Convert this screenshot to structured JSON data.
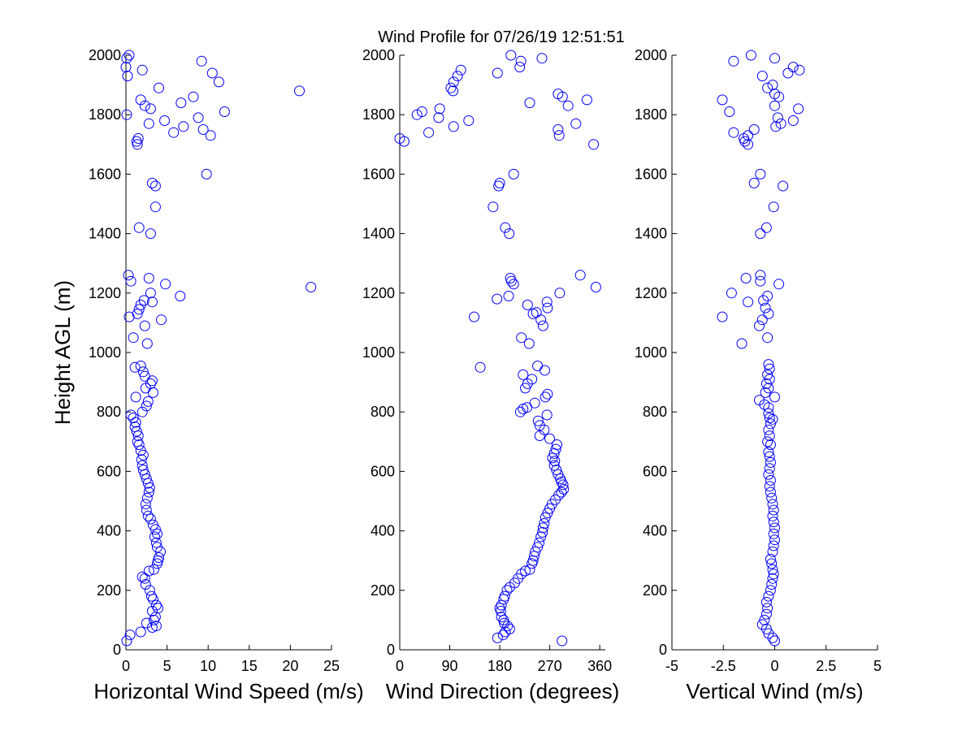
{
  "figure": {
    "title": "Wind Profile for  07/26/19 12:51:51",
    "marker_color": "#0000ff",
    "axis_color": "#000000",
    "background": "#ffffff"
  },
  "chart_data": [
    {
      "type": "scatter",
      "title": "",
      "xlabel": "Horizontal Wind Speed (m/s)",
      "ylabel": "Height AGL (m)",
      "xlim": [
        0,
        25
      ],
      "ylim": [
        0,
        2000
      ],
      "xticks": [
        0,
        5,
        10,
        15,
        20,
        25
      ],
      "yticks": [
        0,
        200,
        400,
        600,
        800,
        1000,
        1200,
        1400,
        1600,
        1800,
        2000
      ],
      "grid": false,
      "legend": "none",
      "points": [
        [
          0.1,
          30
        ],
        [
          0.5,
          50
        ],
        [
          1.8,
          60
        ],
        [
          3.2,
          75
        ],
        [
          3.7,
          80
        ],
        [
          2.5,
          90
        ],
        [
          3.4,
          100
        ],
        [
          3.6,
          110
        ],
        [
          3.2,
          130
        ],
        [
          3.9,
          140
        ],
        [
          3.7,
          150
        ],
        [
          3.3,
          170
        ],
        [
          3.1,
          180
        ],
        [
          2.9,
          200
        ],
        [
          2.4,
          220
        ],
        [
          2.3,
          240
        ],
        [
          2.0,
          245
        ],
        [
          2.8,
          265
        ],
        [
          3.4,
          270
        ],
        [
          3.8,
          290
        ],
        [
          3.9,
          300
        ],
        [
          4.0,
          310
        ],
        [
          4.2,
          330
        ],
        [
          3.8,
          345
        ],
        [
          3.7,
          360
        ],
        [
          3.5,
          380
        ],
        [
          3.8,
          390
        ],
        [
          3.6,
          405
        ],
        [
          3.3,
          420
        ],
        [
          3.0,
          440
        ],
        [
          2.7,
          450
        ],
        [
          2.5,
          470
        ],
        [
          2.4,
          490
        ],
        [
          2.6,
          510
        ],
        [
          2.8,
          530
        ],
        [
          2.9,
          545
        ],
        [
          2.7,
          560
        ],
        [
          2.5,
          575
        ],
        [
          2.3,
          590
        ],
        [
          2.1,
          605
        ],
        [
          2.0,
          620
        ],
        [
          1.9,
          640
        ],
        [
          2.1,
          655
        ],
        [
          1.8,
          670
        ],
        [
          1.6,
          690
        ],
        [
          1.4,
          700
        ],
        [
          1.5,
          720
        ],
        [
          1.3,
          735
        ],
        [
          1.1,
          750
        ],
        [
          1.2,
          765
        ],
        [
          0.9,
          780
        ],
        [
          0.6,
          790
        ],
        [
          2.0,
          800
        ],
        [
          2.5,
          820
        ],
        [
          2.7,
          835
        ],
        [
          1.2,
          850
        ],
        [
          3.3,
          865
        ],
        [
          2.4,
          880
        ],
        [
          3.0,
          895
        ],
        [
          3.2,
          905
        ],
        [
          2.3,
          920
        ],
        [
          2.1,
          935
        ],
        [
          1.8,
          955
        ],
        [
          1.1,
          950
        ],
        [
          2.6,
          1030
        ],
        [
          0.9,
          1050
        ],
        [
          2.3,
          1090
        ],
        [
          4.3,
          1110
        ],
        [
          0.4,
          1120
        ],
        [
          1.4,
          1130
        ],
        [
          1.6,
          1145
        ],
        [
          1.8,
          1160
        ],
        [
          3.2,
          1170
        ],
        [
          2.2,
          1175
        ],
        [
          6.6,
          1190
        ],
        [
          3.0,
          1200
        ],
        [
          4.8,
          1230
        ],
        [
          22.5,
          1220
        ],
        [
          0.6,
          1240
        ],
        [
          2.8,
          1250
        ],
        [
          0.3,
          1260
        ],
        [
          1.6,
          1420
        ],
        [
          3.0,
          1400
        ],
        [
          3.6,
          1490
        ],
        [
          3.6,
          1560
        ],
        [
          3.2,
          1570
        ],
        [
          9.8,
          1600
        ],
        [
          1.4,
          1700
        ],
        [
          1.3,
          1710
        ],
        [
          1.5,
          1720
        ],
        [
          10.3,
          1730
        ],
        [
          5.8,
          1740
        ],
        [
          9.4,
          1750
        ],
        [
          7.0,
          1760
        ],
        [
          2.8,
          1770
        ],
        [
          4.7,
          1780
        ],
        [
          8.8,
          1790
        ],
        [
          0.1,
          1800
        ],
        [
          12.0,
          1810
        ],
        [
          3.0,
          1820
        ],
        [
          2.3,
          1830
        ],
        [
          1.8,
          1850
        ],
        [
          6.7,
          1840
        ],
        [
          8.2,
          1860
        ],
        [
          21.1,
          1880
        ],
        [
          4.0,
          1890
        ],
        [
          11.3,
          1910
        ],
        [
          0.2,
          1930
        ],
        [
          10.5,
          1940
        ],
        [
          2.0,
          1950
        ],
        [
          0.0,
          1960
        ],
        [
          9.2,
          1980
        ],
        [
          0.1,
          1990
        ],
        [
          0.4,
          2000
        ]
      ]
    },
    {
      "type": "scatter",
      "title": "",
      "xlabel": "Wind Direction (degrees)",
      "ylabel": "",
      "xlim": [
        0,
        370
      ],
      "ylim": [
        0,
        2000
      ],
      "xticks": [
        0,
        90,
        180,
        270,
        360
      ],
      "yticks": [
        0,
        200,
        400,
        600,
        800,
        1000,
        1200,
        1400,
        1600,
        1800,
        2000
      ],
      "grid": false,
      "legend": "none",
      "points": [
        [
          292,
          30
        ],
        [
          176,
          40
        ],
        [
          186,
          50
        ],
        [
          190,
          60
        ],
        [
          198,
          70
        ],
        [
          194,
          80
        ],
        [
          188,
          90
        ],
        [
          187,
          100
        ],
        [
          183,
          110
        ],
        [
          182,
          130
        ],
        [
          180,
          140
        ],
        [
          183,
          150
        ],
        [
          187,
          170
        ],
        [
          189,
          180
        ],
        [
          193,
          200
        ],
        [
          198,
          210
        ],
        [
          207,
          225
        ],
        [
          213,
          240
        ],
        [
          219,
          255
        ],
        [
          226,
          265
        ],
        [
          234,
          270
        ],
        [
          238,
          290
        ],
        [
          240,
          300
        ],
        [
          242,
          315
        ],
        [
          244,
          330
        ],
        [
          248,
          345
        ],
        [
          251,
          360
        ],
        [
          254,
          380
        ],
        [
          257,
          395
        ],
        [
          258,
          410
        ],
        [
          260,
          425
        ],
        [
          262,
          445
        ],
        [
          266,
          460
        ],
        [
          270,
          475
        ],
        [
          274,
          490
        ],
        [
          280,
          505
        ],
        [
          286,
          520
        ],
        [
          291,
          530
        ],
        [
          295,
          540
        ],
        [
          294,
          555
        ],
        [
          291,
          565
        ],
        [
          289,
          575
        ],
        [
          285,
          590
        ],
        [
          282,
          605
        ],
        [
          278,
          620
        ],
        [
          279,
          635
        ],
        [
          275,
          645
        ],
        [
          278,
          660
        ],
        [
          281,
          675
        ],
        [
          283,
          690
        ],
        [
          270,
          710
        ],
        [
          252,
          720
        ],
        [
          260,
          740
        ],
        [
          252,
          755
        ],
        [
          249,
          770
        ],
        [
          265,
          790
        ],
        [
          217,
          800
        ],
        [
          222,
          810
        ],
        [
          229,
          815
        ],
        [
          243,
          830
        ],
        [
          262,
          850
        ],
        [
          266,
          860
        ],
        [
          226,
          880
        ],
        [
          230,
          895
        ],
        [
          238,
          910
        ],
        [
          222,
          925
        ],
        [
          261,
          940
        ],
        [
          248,
          955
        ],
        [
          145,
          950
        ],
        [
          233,
          1030
        ],
        [
          219,
          1050
        ],
        [
          258,
          1090
        ],
        [
          254,
          1110
        ],
        [
          134,
          1120
        ],
        [
          240,
          1130
        ],
        [
          246,
          1135
        ],
        [
          266,
          1150
        ],
        [
          230,
          1160
        ],
        [
          265,
          1170
        ],
        [
          175,
          1180
        ],
        [
          196,
          1190
        ],
        [
          288,
          1200
        ],
        [
          353,
          1220
        ],
        [
          205,
          1230
        ],
        [
          201,
          1240
        ],
        [
          325,
          1260
        ],
        [
          199,
          1250
        ],
        [
          197,
          1400
        ],
        [
          190,
          1420
        ],
        [
          168,
          1490
        ],
        [
          178,
          1560
        ],
        [
          180,
          1570
        ],
        [
          205,
          1600
        ],
        [
          8,
          1710
        ],
        [
          0,
          1720
        ],
        [
          287,
          1730
        ],
        [
          52,
          1740
        ],
        [
          285,
          1750
        ],
        [
          349,
          1700
        ],
        [
          97,
          1760
        ],
        [
          317,
          1770
        ],
        [
          124,
          1780
        ],
        [
          70,
          1790
        ],
        [
          31,
          1800
        ],
        [
          40,
          1810
        ],
        [
          72,
          1820
        ],
        [
          303,
          1830
        ],
        [
          234,
          1840
        ],
        [
          337,
          1850
        ],
        [
          293,
          1860
        ],
        [
          285,
          1870
        ],
        [
          96,
          1880
        ],
        [
          92,
          1890
        ],
        [
          97,
          1910
        ],
        [
          104,
          1930
        ],
        [
          176,
          1940
        ],
        [
          110,
          1950
        ],
        [
          216,
          1960
        ],
        [
          218,
          1980
        ],
        [
          256,
          1990
        ],
        [
          200,
          2000
        ]
      ]
    },
    {
      "type": "scatter",
      "title": "",
      "xlabel": "Vertical Wind (m/s)",
      "ylabel": "",
      "xlim": [
        -5,
        5
      ],
      "ylim": [
        0,
        2000
      ],
      "xticks": [
        -5,
        -2.5,
        0,
        2.5,
        5
      ],
      "yticks": [
        0,
        200,
        400,
        600,
        800,
        1000,
        1200,
        1400,
        1600,
        1800,
        2000
      ],
      "grid": false,
      "legend": "none",
      "points": [
        [
          0.0,
          30
        ],
        [
          -0.1,
          40
        ],
        [
          -0.3,
          55
        ],
        [
          -0.4,
          70
        ],
        [
          -0.6,
          85
        ],
        [
          -0.5,
          100
        ],
        [
          -0.4,
          120
        ],
        [
          -0.35,
          140
        ],
        [
          -0.4,
          160
        ],
        [
          -0.3,
          180
        ],
        [
          -0.2,
          200
        ],
        [
          -0.15,
          220
        ],
        [
          -0.1,
          240
        ],
        [
          -0.05,
          255
        ],
        [
          -0.1,
          270
        ],
        [
          -0.15,
          290
        ],
        [
          -0.2,
          305
        ],
        [
          -0.1,
          330
        ],
        [
          -0.05,
          350
        ],
        [
          0.0,
          370
        ],
        [
          -0.05,
          390
        ],
        [
          0.0,
          410
        ],
        [
          -0.05,
          430
        ],
        [
          -0.1,
          450
        ],
        [
          -0.05,
          470
        ],
        [
          -0.1,
          490
        ],
        [
          -0.15,
          510
        ],
        [
          -0.2,
          530
        ],
        [
          -0.25,
          550
        ],
        [
          -0.2,
          570
        ],
        [
          -0.3,
          590
        ],
        [
          -0.25,
          610
        ],
        [
          -0.2,
          630
        ],
        [
          -0.25,
          650
        ],
        [
          -0.3,
          665
        ],
        [
          -0.2,
          690
        ],
        [
          -0.35,
          700
        ],
        [
          -0.25,
          720
        ],
        [
          -0.3,
          740
        ],
        [
          -0.2,
          760
        ],
        [
          -0.25,
          780
        ],
        [
          -0.1,
          775
        ],
        [
          -0.3,
          795
        ],
        [
          -0.3,
          815
        ],
        [
          -0.5,
          825
        ],
        [
          -0.75,
          840
        ],
        [
          0.0,
          850
        ],
        [
          -0.45,
          865
        ],
        [
          -0.3,
          880
        ],
        [
          -0.4,
          895
        ],
        [
          -0.25,
          910
        ],
        [
          -0.35,
          925
        ],
        [
          -0.25,
          945
        ],
        [
          -0.3,
          960
        ],
        [
          -1.6,
          1030
        ],
        [
          -0.35,
          1050
        ],
        [
          -0.75,
          1090
        ],
        [
          -0.6,
          1110
        ],
        [
          -2.55,
          1120
        ],
        [
          -0.3,
          1130
        ],
        [
          -0.45,
          1150
        ],
        [
          -1.3,
          1170
        ],
        [
          -0.55,
          1175
        ],
        [
          -0.35,
          1190
        ],
        [
          -2.1,
          1200
        ],
        [
          0.2,
          1230
        ],
        [
          -0.7,
          1240
        ],
        [
          -1.4,
          1250
        ],
        [
          -0.7,
          1260
        ],
        [
          -0.7,
          1400
        ],
        [
          -0.4,
          1420
        ],
        [
          -0.05,
          1490
        ],
        [
          0.4,
          1560
        ],
        [
          -1.0,
          1570
        ],
        [
          -0.7,
          1600
        ],
        [
          -1.3,
          1700
        ],
        [
          -1.45,
          1710
        ],
        [
          -1.5,
          1720
        ],
        [
          -1.3,
          1730
        ],
        [
          -2.0,
          1740
        ],
        [
          -1.0,
          1750
        ],
        [
          0.05,
          1760
        ],
        [
          0.3,
          1770
        ],
        [
          0.9,
          1780
        ],
        [
          0.15,
          1790
        ],
        [
          -2.2,
          1810
        ],
        [
          1.15,
          1820
        ],
        [
          0.0,
          1830
        ],
        [
          -2.55,
          1850
        ],
        [
          0.2,
          1860
        ],
        [
          0.0,
          1870
        ],
        [
          -0.35,
          1890
        ],
        [
          -0.1,
          1900
        ],
        [
          -0.6,
          1930
        ],
        [
          0.65,
          1940
        ],
        [
          1.2,
          1950
        ],
        [
          0.9,
          1960
        ],
        [
          -2.0,
          1980
        ],
        [
          0.0,
          1990
        ],
        [
          -1.15,
          2000
        ]
      ]
    }
  ]
}
